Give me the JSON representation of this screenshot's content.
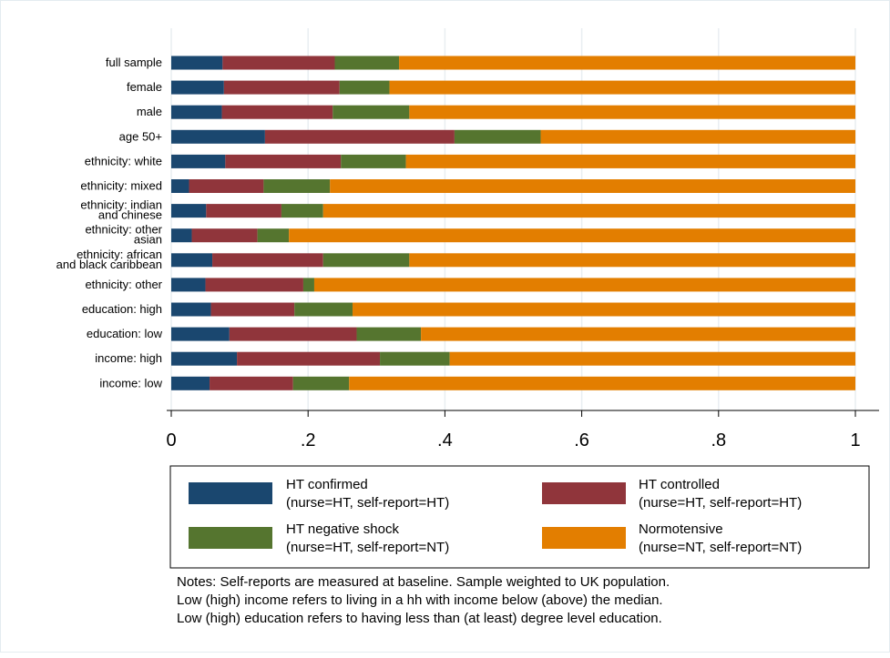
{
  "chart_data": {
    "type": "bar",
    "orientation": "horizontal",
    "stacked": true,
    "categories": [
      [
        "full sample"
      ],
      [
        "female"
      ],
      [
        "male"
      ],
      [
        "age 50+"
      ],
      [
        "ethnicity: white"
      ],
      [
        "ethnicity: mixed"
      ],
      [
        "ethnicity: indian",
        "and chinese"
      ],
      [
        "ethnicity: other",
        "asian"
      ],
      [
        "ethnicity: african",
        "and black caribbean"
      ],
      [
        "ethnicity: other"
      ],
      [
        "education: high"
      ],
      [
        "education: low"
      ],
      [
        "income: high"
      ],
      [
        "income: low"
      ]
    ],
    "series": [
      {
        "name": [
          "HT confirmed",
          "(nurse=HT, self-report=HT)"
        ],
        "color": "#1a476f",
        "values": [
          0.075,
          0.077,
          0.074,
          0.137,
          0.079,
          0.026,
          0.051,
          0.03,
          0.06,
          0.05,
          0.058,
          0.085,
          0.096,
          0.056
        ]
      },
      {
        "name": [
          "HT controlled",
          "(nurse=HT, self-report=HT)"
        ],
        "color": "#90353b",
        "values": [
          0.164,
          0.169,
          0.162,
          0.277,
          0.169,
          0.109,
          0.11,
          0.096,
          0.162,
          0.143,
          0.122,
          0.186,
          0.209,
          0.122
        ]
      },
      {
        "name": [
          "HT negative shock",
          "(nurse=HT, self-report=NT)"
        ],
        "color": "#55752f",
        "values": [
          0.094,
          0.073,
          0.112,
          0.126,
          0.095,
          0.097,
          0.061,
          0.046,
          0.126,
          0.016,
          0.085,
          0.094,
          0.102,
          0.082
        ]
      },
      {
        "name": [
          "Normotensive",
          "(nurse=NT, self-report=NT)"
        ],
        "color": "#e37e00",
        "values": [
          0.667,
          0.681,
          0.652,
          0.46,
          0.657,
          0.768,
          0.778,
          0.828,
          0.652,
          0.791,
          0.735,
          0.635,
          0.593,
          0.74
        ]
      }
    ],
    "x_ticks": [
      "0",
      ".2",
      ".4",
      ".6",
      ".8",
      "1"
    ],
    "x_tick_values": [
      0,
      0.2,
      0.4,
      0.6,
      0.8,
      1
    ],
    "xlim": [
      0,
      1
    ],
    "grid": true,
    "legend_placement": "bottom"
  },
  "notes": [
    "Notes: Self-reports are measured at baseline. Sample weighted to UK population.",
    "Low (high) income refers to living in a hh with income below (above) the median.",
    "Low (high) education refers to having less than (at least) degree level education."
  ]
}
